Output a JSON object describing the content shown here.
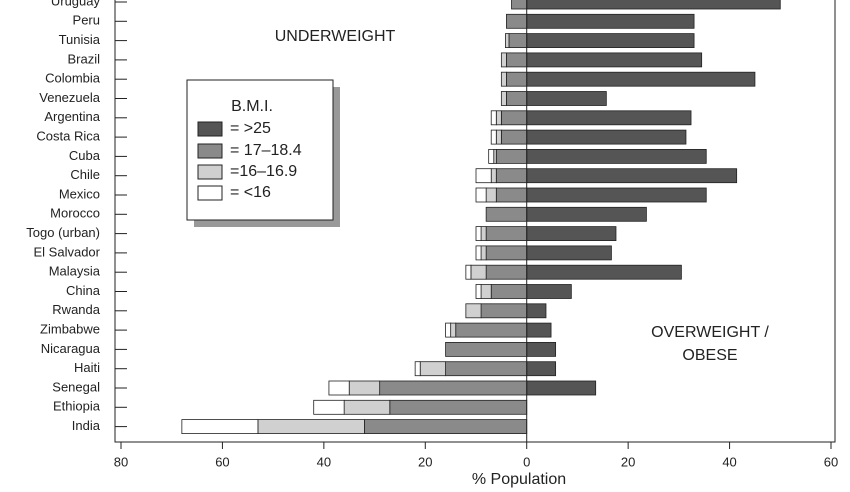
{
  "chart_data": {
    "type": "diverging_stacked_barh",
    "categories": [
      "Uruguay",
      "Peru",
      "Tunisia",
      "Brazil",
      "Colombia",
      "Venezuela",
      "Argentina",
      "Costa Rica",
      "Cuba",
      "Chile",
      "Mexico",
      "Morocco",
      "Togo (urban)",
      "El Salvador",
      "Malaysia",
      "China",
      "Rwanda",
      "Zimbabwe",
      "Nicaragua",
      "Haiti",
      "Senegal",
      "Ethiopia",
      "India"
    ],
    "legend_title": "B.M.I.",
    "series": [
      {
        "name": "= >25",
        "color": "#555555",
        "values": [
          50,
          33,
          33,
          34.5,
          45,
          15.7,
          32.4,
          31.4,
          35.4,
          41.4,
          35.4,
          23.6,
          17.6,
          16.7,
          30.5,
          8.8,
          3.8,
          4.8,
          5.7,
          5.7,
          13.6,
          0,
          0
        ]
      },
      {
        "name": "= 17–18.4",
        "color": "#8a8a8a",
        "values": [
          -3,
          -4,
          -3.5,
          -4,
          -4,
          -4,
          -5,
          -5,
          -6,
          -6,
          -6,
          -8,
          -8,
          -8,
          -8,
          -7,
          -9,
          -14,
          -16,
          -16,
          -29,
          -27,
          -32
        ]
      },
      {
        "name": "=16–16.9",
        "color": "#d0d0d0",
        "values": [
          0,
          0,
          -0.7,
          -1,
          -1,
          -1,
          -1,
          -1,
          -0.5,
          -1,
          -2,
          0,
          -1,
          -1,
          -3,
          -2,
          -3,
          -1,
          0,
          -5,
          -6,
          -9,
          -21
        ]
      },
      {
        "name": "= <16",
        "color": "#ffffff",
        "values": [
          0,
          0,
          0,
          0,
          0,
          0,
          -1,
          -1,
          -1,
          -3,
          -2,
          0,
          -1,
          -1,
          -1,
          -1,
          0,
          -1,
          0,
          -1,
          -4,
          -6,
          -15
        ]
      }
    ],
    "xlabel": "% Population",
    "annotations": [
      "UNDERWEIGHT",
      "OVERWEIGHT /",
      "OBESE"
    ],
    "xlim": [
      -80,
      60
    ],
    "xticks": [
      {
        "value": -80,
        "label": "80"
      },
      {
        "value": -60,
        "label": "60"
      },
      {
        "value": -40,
        "label": "40"
      },
      {
        "value": -20,
        "label": "20"
      },
      0,
      20,
      40,
      60
    ]
  }
}
